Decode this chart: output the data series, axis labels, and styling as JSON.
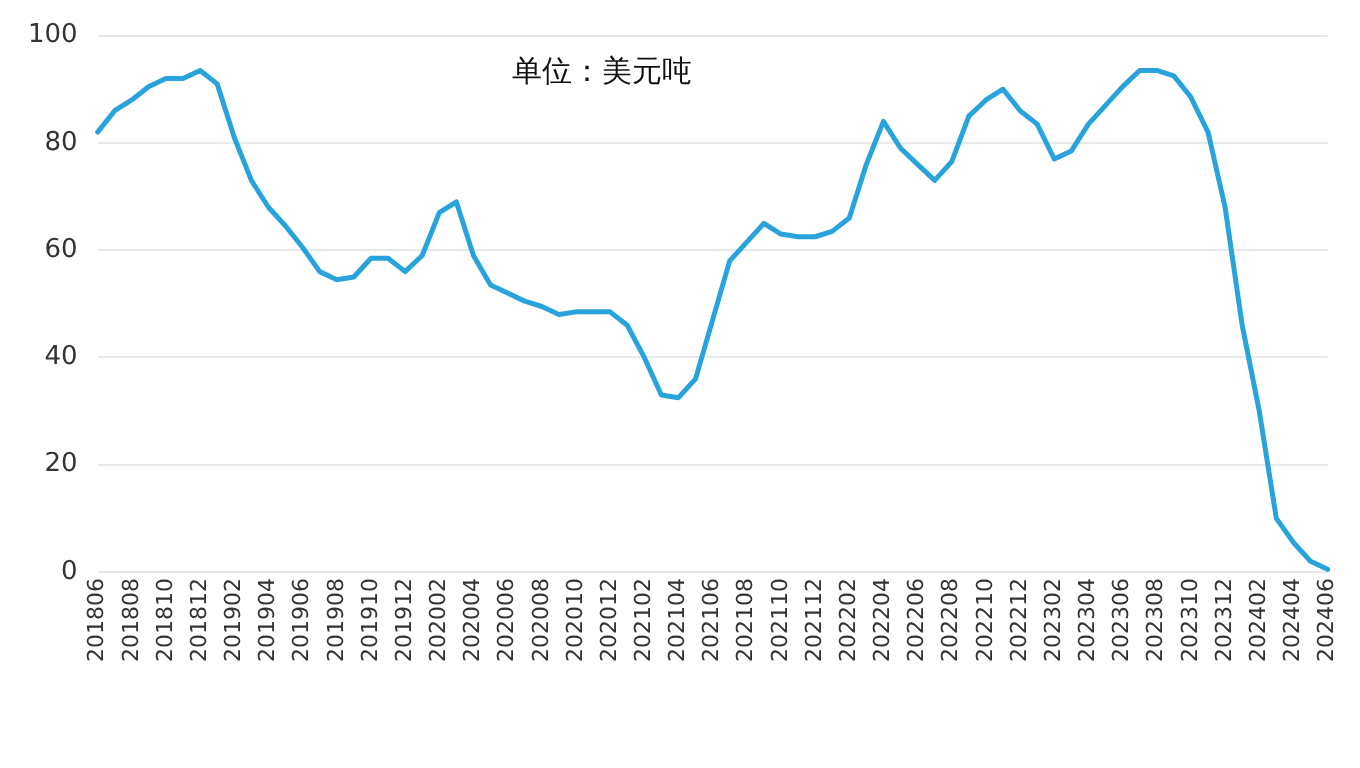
{
  "chart_data": {
    "type": "line",
    "annotations": [
      "单位：美元吨"
    ],
    "categories": [
      "201806",
      null,
      "201808",
      null,
      "201810",
      null,
      "201812",
      null,
      "201902",
      null,
      "201904",
      null,
      "201906",
      null,
      "201908",
      null,
      "201910",
      null,
      "201912",
      null,
      "202002",
      null,
      "202004",
      null,
      "202006",
      null,
      "202008",
      null,
      "202010",
      null,
      "202012",
      null,
      "202102",
      null,
      "202104",
      null,
      "202106",
      null,
      "202108",
      null,
      "202110",
      null,
      "202112",
      null,
      "202202",
      null,
      "202204",
      null,
      "202206",
      null,
      "202208",
      null,
      "202210",
      null,
      "202212",
      null,
      "202302",
      null,
      "202304",
      null,
      "202306",
      null,
      "202308",
      null,
      "202310",
      null,
      "202312",
      null,
      "202402",
      null,
      "202404",
      null,
      "202406"
    ],
    "series": [
      {
        "color": "#29a3dc",
        "values": [
          82,
          86,
          88,
          90.5,
          92,
          92,
          93.5,
          91,
          81,
          73,
          68,
          64.5,
          60.5,
          56,
          54.5,
          55,
          58.5,
          58.5,
          56,
          59,
          67,
          69,
          59,
          53.5,
          52,
          50.5,
          49.5,
          48,
          48.5,
          48.5,
          48.5,
          46,
          40,
          33,
          32.5,
          36,
          47,
          58,
          61.5,
          65,
          63,
          62.5,
          62.5,
          63.5,
          66,
          76,
          84,
          79,
          76,
          73,
          76.5,
          85,
          88,
          90,
          86,
          83.5,
          77,
          78.5,
          83.5,
          87,
          90.5,
          93.5,
          93.5,
          92.5,
          88.5,
          82,
          68,
          46,
          30,
          10,
          5.5,
          2,
          0.5
        ]
      }
    ],
    "ylim": [
      0,
      100
    ],
    "yticks": [
      0,
      20,
      40,
      60,
      80,
      100
    ],
    "grid": "y",
    "legend": false,
    "marker": "none",
    "line_style": "solid"
  }
}
